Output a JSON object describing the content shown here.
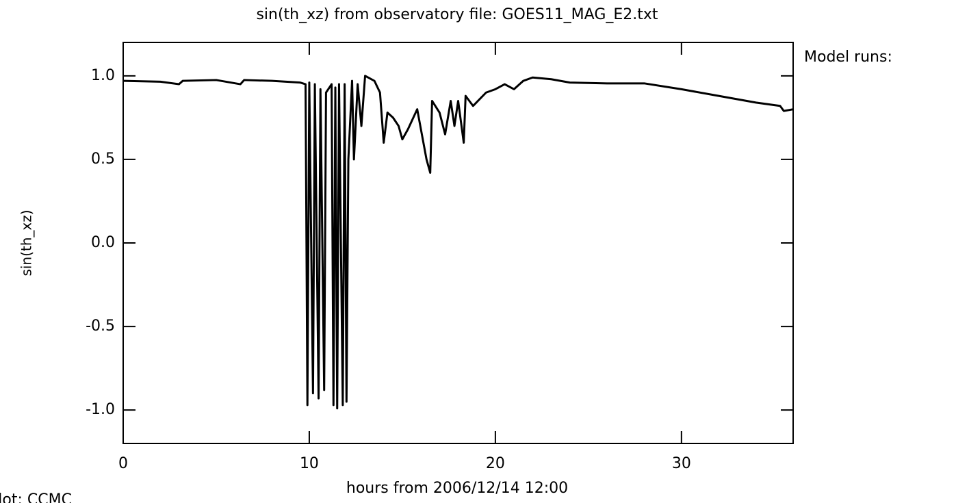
{
  "chart_data": {
    "type": "line",
    "title": "sin(th_xz) from observatory file: GOES11_MAG_E2.txt",
    "legend_title": "Model runs:",
    "y_label": "sin(th_xz)",
    "x_label": "hours from 2006/12/14 12:00",
    "footer": "Plot: CCMC",
    "xlim": [
      0,
      36
    ],
    "xticks": [
      0,
      10,
      20,
      30
    ],
    "ylim": [
      -1.2,
      1.2
    ],
    "yticks": [
      {
        "value": 1.0,
        "label": "1.0"
      },
      0.5,
      {
        "value": 0.0,
        "label": "0.0"
      },
      -0.5,
      {
        "value": -1.0,
        "label": "-1.0"
      }
    ],
    "series": [
      {
        "color": "#000000",
        "x": [
          0,
          2,
          3,
          3.2,
          5,
          6.3,
          6.5,
          8,
          9.5,
          9.8,
          9.9,
          10.0,
          10.2,
          10.3,
          10.5,
          10.6,
          10.8,
          10.9,
          11.2,
          11.3,
          11.4,
          11.5,
          11.6,
          11.8,
          11.9,
          12.0,
          12.1,
          12.3,
          12.4,
          12.6,
          12.8,
          13.0,
          13.5,
          13.8,
          14.0,
          14.2,
          14.5,
          14.8,
          15.0,
          15.3,
          15.8,
          16.0,
          16.3,
          16.5,
          16.6,
          17.0,
          17.3,
          17.6,
          17.8,
          18.0,
          18.3,
          18.4,
          18.8,
          19.5,
          20.0,
          20.5,
          21,
          21.5,
          22,
          23,
          24,
          26,
          28,
          30,
          32,
          34,
          35.3,
          35.5,
          36
        ],
        "values": [
          0.97,
          0.965,
          0.95,
          0.97,
          0.975,
          0.95,
          0.975,
          0.97,
          0.96,
          0.95,
          -0.97,
          0.96,
          -0.9,
          0.95,
          -0.93,
          0.92,
          -0.88,
          0.9,
          0.95,
          -0.97,
          0.93,
          -0.99,
          0.95,
          -0.97,
          0.95,
          -0.95,
          0.5,
          0.97,
          0.5,
          0.95,
          0.7,
          1.0,
          0.97,
          0.9,
          0.6,
          0.78,
          0.75,
          0.7,
          0.62,
          0.68,
          0.8,
          0.68,
          0.5,
          0.42,
          0.85,
          0.78,
          0.65,
          0.85,
          0.7,
          0.85,
          0.6,
          0.88,
          0.82,
          0.9,
          0.92,
          0.95,
          0.92,
          0.97,
          0.99,
          0.98,
          0.96,
          0.955,
          0.955,
          0.92,
          0.88,
          0.84,
          0.82,
          0.79,
          0.8
        ]
      }
    ]
  }
}
